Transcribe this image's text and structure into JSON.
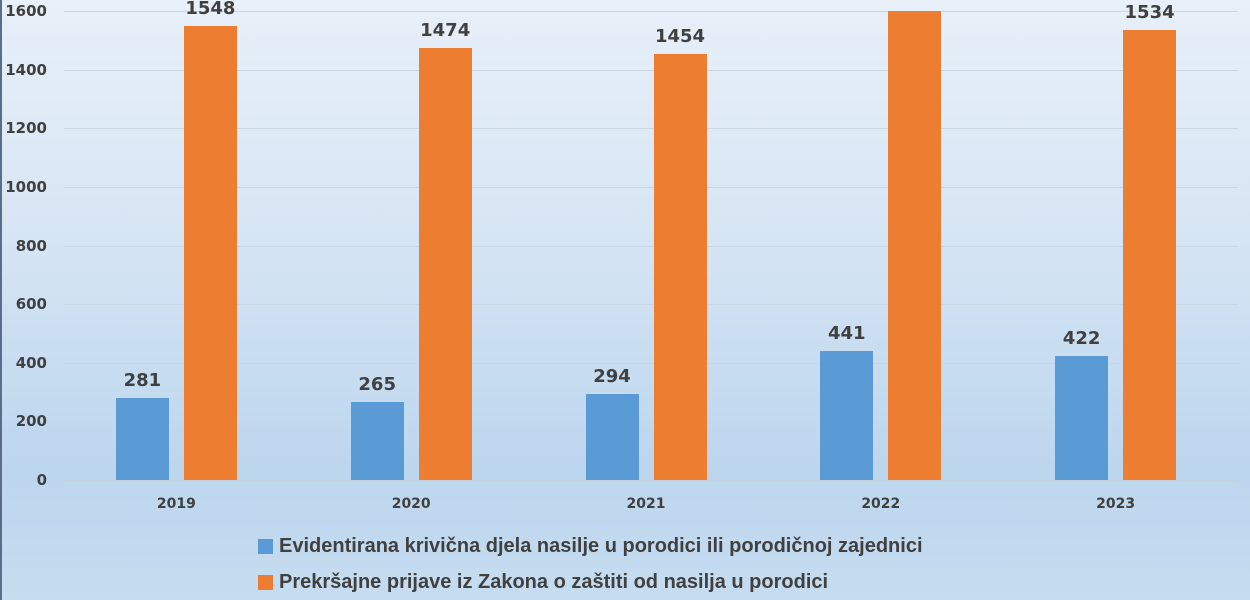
{
  "chart_data": {
    "type": "bar",
    "title": "",
    "xlabel": "",
    "ylabel": "",
    "categories": [
      "2019",
      "2020",
      "2021",
      "2022",
      "2023"
    ],
    "series": [
      {
        "name": "Evidentirana krivična djela nasilje u porodici ili porodičnoj zajednici",
        "color": "#5b9bd5",
        "values": [
          281,
          265,
          294,
          441,
          422
        ],
        "labels": [
          "281",
          "265",
          "294",
          "441",
          "422"
        ]
      },
      {
        "name": "Prekršajne prijave iz Zakona o zaštiti od nasilja u porodici",
        "color": "#ed7d31",
        "values": [
          1548,
          1474,
          1454,
          1600,
          1534
        ],
        "labels": [
          "1548",
          "1474",
          "1454",
          "",
          "1534"
        ]
      }
    ],
    "ylim": [
      0,
      1600
    ],
    "yticks": [
      "0",
      "200",
      "400",
      "600",
      "800",
      "1000",
      "1200",
      "1400",
      "1600"
    ],
    "grid": true,
    "legend_position": "bottom",
    "annotations": [
      "2022 orange data label is clipped at top of image (value ≈1600+)"
    ]
  }
}
